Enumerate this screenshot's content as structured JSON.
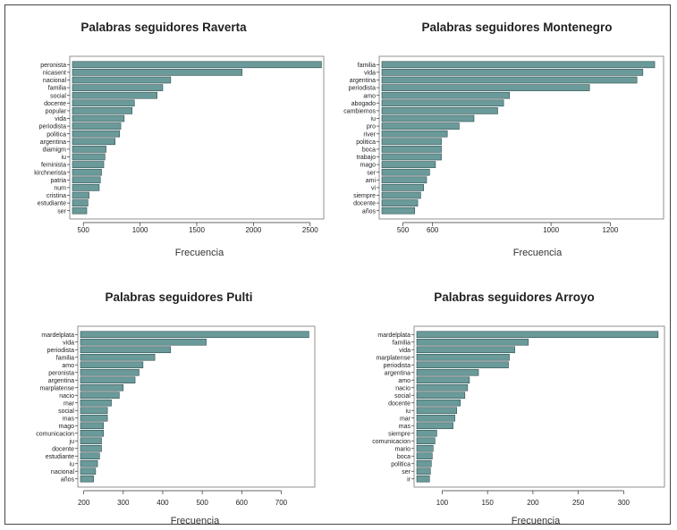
{
  "colors": {
    "bar_fill": "#6a9a9a",
    "bar_stroke": "#2f4f4f",
    "axis": "#333333",
    "text": "#222222"
  },
  "chart_data": [
    {
      "type": "bar",
      "orientation": "horizontal",
      "title": "Palabras seguidores Raverta",
      "xlabel": "Frecuencia",
      "ylabel": "",
      "xlim": [
        380,
        2620
      ],
      "xticks": [
        500,
        1000,
        1500,
        2000,
        2500
      ],
      "categories": [
        "peronista",
        "nicasent",
        "nacional",
        "familia",
        "social",
        "docente",
        "popular",
        "vida",
        "periodista",
        "politica",
        "argentina",
        "diamigm",
        "iu",
        "feminista",
        "kirchnerista",
        "patria",
        "num",
        "cristina",
        "estudiante",
        "ser"
      ],
      "values": [
        2600,
        1900,
        1270,
        1200,
        1150,
        950,
        930,
        860,
        830,
        820,
        780,
        700,
        690,
        680,
        660,
        650,
        640,
        550,
        540,
        530
      ]
    },
    {
      "type": "bar",
      "orientation": "horizontal",
      "title": "Palabras seguidores Montenegro",
      "xlabel": "Frecuencia",
      "ylabel": "",
      "xlim": [
        420,
        1380
      ],
      "xticks": [
        500,
        600,
        1000,
        1200
      ],
      "categories": [
        "familia",
        "vida",
        "argentina",
        "periodista",
        "amo",
        "abogado",
        "cambiemos",
        "iu",
        "pro",
        "river",
        "politica",
        "boca",
        "trabajo",
        "mago",
        "ser",
        "ami",
        "vi",
        "siempre",
        "docente",
        "años"
      ],
      "values": [
        1350,
        1310,
        1290,
        1130,
        860,
        840,
        820,
        740,
        690,
        650,
        630,
        630,
        630,
        610,
        590,
        580,
        570,
        560,
        550,
        540
      ]
    },
    {
      "type": "bar",
      "orientation": "horizontal",
      "title": "Palabras seguidores Pulti",
      "xlabel": "Frecuencia",
      "ylabel": "",
      "xlim": [
        185,
        785
      ],
      "xticks": [
        200,
        300,
        400,
        500,
        600,
        700
      ],
      "categories": [
        "mardelplata",
        "vida",
        "periodista",
        "familia",
        "amo",
        "peronista",
        "argentina",
        "marplatense",
        "nacio",
        "mar",
        "social",
        "mas",
        "mago",
        "comunicacion",
        "ju",
        "docente",
        "estudiante",
        "iu",
        "nacional",
        "años"
      ],
      "values": [
        770,
        510,
        420,
        380,
        350,
        340,
        330,
        300,
        290,
        270,
        260,
        260,
        250,
        250,
        245,
        245,
        240,
        235,
        230,
        225
      ]
    },
    {
      "type": "bar",
      "orientation": "horizontal",
      "title": "Palabras seguidores Arroyo",
      "xlabel": "Frecuencia",
      "ylabel": "",
      "xlim": [
        69,
        345
      ],
      "xticks": [
        100,
        150,
        200,
        250,
        300
      ],
      "categories": [
        "mardelplata",
        "familia",
        "vida",
        "marplatense",
        "periodista",
        "argentina",
        "amo",
        "nacio",
        "social",
        "docente",
        "iu",
        "mar",
        "mas",
        "siempre",
        "comunicacion",
        "mario",
        "boca",
        "politica",
        "ser",
        "ir"
      ],
      "values": [
        338,
        195,
        180,
        174,
        173,
        140,
        130,
        128,
        125,
        120,
        116,
        114,
        112,
        94,
        92,
        90,
        89,
        88,
        87,
        86
      ]
    }
  ]
}
